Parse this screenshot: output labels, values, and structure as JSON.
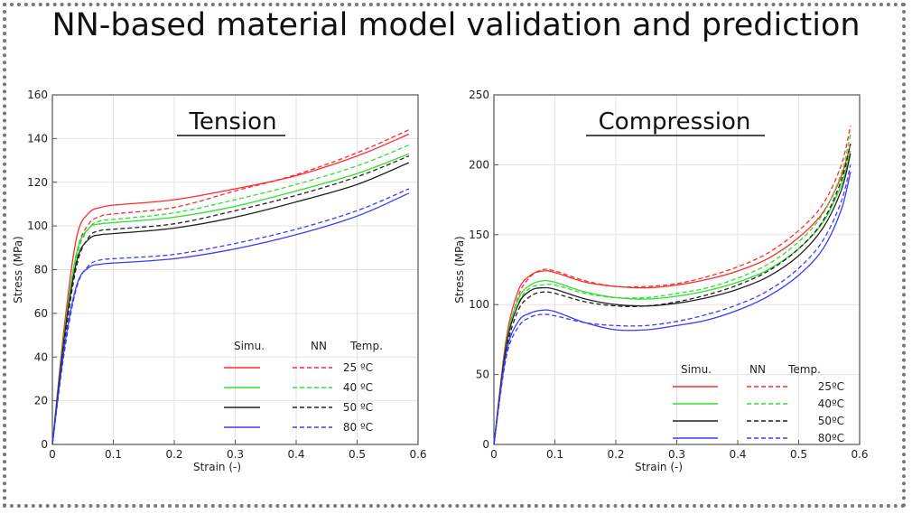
{
  "title": "NN-based material model validation and prediction",
  "colors": {
    "25": "#ff2a2a",
    "40": "#2ee02e",
    "50": "#222222",
    "80": "#3a3aff"
  },
  "chart_data": [
    {
      "type": "line",
      "title": "Tension",
      "xlabel": "Strain (-)",
      "ylabel": "Stress (MPa)",
      "xlim": [
        0,
        0.6
      ],
      "ylim": [
        0,
        160
      ],
      "xticks": [
        "0",
        "0.1",
        "0.2",
        "0.3",
        "0.4",
        "0.5",
        "0.6"
      ],
      "xtick_values": [
        0,
        0.1,
        0.2,
        0.3,
        0.4,
        0.5,
        0.6
      ],
      "yticks": [
        "0",
        "20",
        "40",
        "60",
        "80",
        "100",
        "120",
        "140",
        "160"
      ],
      "ytick_values": [
        0,
        20,
        40,
        60,
        80,
        100,
        120,
        140,
        160
      ],
      "grid": true,
      "legend": {
        "position": "bottom-right",
        "headers": [
          "Simu.",
          "NN",
          "Temp."
        ],
        "labels": [
          "25 ºC",
          "40 ºC",
          "50 ºC",
          "80 ºC"
        ]
      },
      "series": [
        {
          "temp": "25",
          "style": "solid",
          "x": [
            0,
            0.02,
            0.04,
            0.06,
            0.08,
            0.1,
            0.2,
            0.3,
            0.4,
            0.5,
            0.585
          ],
          "y": [
            0,
            55,
            95,
            106,
            108.5,
            109.5,
            112,
            117,
            123,
            132,
            142
          ]
        },
        {
          "temp": "25",
          "style": "dashed",
          "x": [
            0,
            0.02,
            0.04,
            0.06,
            0.08,
            0.1,
            0.2,
            0.3,
            0.4,
            0.5,
            0.585
          ],
          "y": [
            0,
            50,
            88,
            101,
            104.5,
            105.5,
            108.5,
            116,
            123.5,
            133.5,
            144
          ]
        },
        {
          "temp": "40",
          "style": "solid",
          "x": [
            0,
            0.02,
            0.04,
            0.06,
            0.08,
            0.1,
            0.2,
            0.3,
            0.4,
            0.5,
            0.585
          ],
          "y": [
            0,
            52,
            88,
            99,
            101,
            101.5,
            104,
            109,
            116,
            124,
            133
          ]
        },
        {
          "temp": "40",
          "style": "dashed",
          "x": [
            0,
            0.02,
            0.04,
            0.06,
            0.08,
            0.1,
            0.2,
            0.3,
            0.4,
            0.5,
            0.585
          ],
          "y": [
            0,
            50,
            86,
            99,
            102.5,
            103,
            106,
            112,
            119,
            127.5,
            137
          ]
        },
        {
          "temp": "50",
          "style": "solid",
          "x": [
            0,
            0.02,
            0.04,
            0.06,
            0.08,
            0.1,
            0.2,
            0.3,
            0.4,
            0.5,
            0.585
          ],
          "y": [
            0,
            50,
            84,
            94,
            96,
            96.5,
            99,
            104,
            111,
            119,
            129
          ]
        },
        {
          "temp": "50",
          "style": "dashed",
          "x": [
            0,
            0.02,
            0.04,
            0.06,
            0.08,
            0.1,
            0.2,
            0.3,
            0.4,
            0.5,
            0.585
          ],
          "y": [
            0,
            47,
            82,
            95,
            98,
            98.5,
            101,
            107,
            114,
            122.5,
            132
          ]
        },
        {
          "temp": "80",
          "style": "solid",
          "x": [
            0,
            0.02,
            0.04,
            0.06,
            0.08,
            0.1,
            0.2,
            0.3,
            0.4,
            0.5,
            0.585
          ],
          "y": [
            0,
            45,
            73,
            81,
            82.5,
            83,
            85,
            89.5,
            96,
            104.5,
            115
          ]
        },
        {
          "temp": "80",
          "style": "dashed",
          "x": [
            0,
            0.02,
            0.04,
            0.06,
            0.08,
            0.1,
            0.2,
            0.3,
            0.4,
            0.5,
            0.585
          ],
          "y": [
            0,
            43,
            72,
            82,
            84.5,
            85,
            87,
            92,
            98.5,
            107,
            117
          ]
        }
      ]
    },
    {
      "type": "line",
      "title": "Compression",
      "xlabel": "Strain (-)",
      "ylabel": "Stress (MPa)",
      "xlim": [
        0,
        0.6
      ],
      "ylim": [
        0,
        250
      ],
      "xticks": [
        "0",
        "0.1",
        "0.2",
        "0.3",
        "0.4",
        "0.5",
        "0.6"
      ],
      "xtick_values": [
        0,
        0.1,
        0.2,
        0.3,
        0.4,
        0.5,
        0.6
      ],
      "yticks": [
        "0",
        "50",
        "100",
        "150",
        "200",
        "250"
      ],
      "ytick_values": [
        0,
        50,
        100,
        150,
        200,
        250
      ],
      "grid": true,
      "legend": {
        "position": "bottom-right",
        "headers": [
          "Simu.",
          "NN",
          "Temp."
        ],
        "labels": [
          "25ºC",
          "40ºC",
          "50ºC",
          "80ºC"
        ]
      },
      "series": [
        {
          "temp": "25",
          "style": "solid",
          "x": [
            0,
            0.02,
            0.04,
            0.06,
            0.08,
            0.1,
            0.15,
            0.2,
            0.25,
            0.3,
            0.35,
            0.4,
            0.45,
            0.5,
            0.54,
            0.57,
            0.585
          ],
          "y": [
            0,
            75,
            110,
            121,
            124,
            123,
            116,
            113,
            112,
            114,
            118,
            124,
            133,
            148,
            166,
            192,
            215
          ]
        },
        {
          "temp": "25",
          "style": "dashed",
          "x": [
            0,
            0.02,
            0.04,
            0.06,
            0.08,
            0.1,
            0.15,
            0.2,
            0.25,
            0.3,
            0.35,
            0.4,
            0.45,
            0.5,
            0.54,
            0.57,
            0.585
          ],
          "y": [
            0,
            70,
            106,
            120,
            125,
            124,
            117,
            113,
            113,
            115,
            120,
            127,
            137,
            153,
            172,
            200,
            228
          ]
        },
        {
          "temp": "40",
          "style": "solid",
          "x": [
            0,
            0.02,
            0.04,
            0.06,
            0.08,
            0.1,
            0.15,
            0.2,
            0.25,
            0.3,
            0.35,
            0.4,
            0.45,
            0.5,
            0.54,
            0.57,
            0.585
          ],
          "y": [
            0,
            72,
            104,
            114,
            117,
            116,
            109,
            105,
            104,
            106,
            110,
            116,
            125,
            140,
            159,
            186,
            210
          ]
        },
        {
          "temp": "40",
          "style": "dashed",
          "x": [
            0,
            0.02,
            0.04,
            0.06,
            0.08,
            0.1,
            0.15,
            0.2,
            0.25,
            0.3,
            0.35,
            0.4,
            0.45,
            0.5,
            0.54,
            0.57,
            0.585
          ],
          "y": [
            0,
            68,
            101,
            112,
            114,
            114,
            108,
            105,
            105,
            108,
            112,
            119,
            129,
            145,
            165,
            194,
            222
          ]
        },
        {
          "temp": "50",
          "style": "solid",
          "x": [
            0,
            0.02,
            0.04,
            0.06,
            0.08,
            0.1,
            0.15,
            0.2,
            0.25,
            0.3,
            0.35,
            0.4,
            0.45,
            0.5,
            0.54,
            0.57,
            0.585
          ],
          "y": [
            0,
            70,
            100,
            110,
            112,
            111,
            104,
            100,
            99,
            101,
            105,
            111,
            120,
            135,
            155,
            182,
            208
          ]
        },
        {
          "temp": "50",
          "style": "dashed",
          "x": [
            0,
            0.02,
            0.04,
            0.06,
            0.08,
            0.1,
            0.15,
            0.2,
            0.25,
            0.3,
            0.35,
            0.4,
            0.45,
            0.5,
            0.54,
            0.57,
            0.585
          ],
          "y": [
            0,
            66,
            96,
            106,
            109,
            108,
            102,
            99,
            99,
            102,
            107,
            114,
            124,
            140,
            160,
            189,
            215
          ]
        },
        {
          "temp": "80",
          "style": "solid",
          "x": [
            0,
            0.02,
            0.04,
            0.06,
            0.08,
            0.1,
            0.15,
            0.2,
            0.25,
            0.3,
            0.35,
            0.4,
            0.45,
            0.5,
            0.54,
            0.57,
            0.585
          ],
          "y": [
            0,
            65,
            88,
            94,
            96,
            95,
            87,
            82,
            82,
            85,
            89,
            96,
            106,
            121,
            140,
            168,
            195
          ]
        },
        {
          "temp": "80",
          "style": "dashed",
          "x": [
            0,
            0.02,
            0.04,
            0.06,
            0.08,
            0.1,
            0.15,
            0.2,
            0.25,
            0.3,
            0.35,
            0.4,
            0.45,
            0.5,
            0.54,
            0.57,
            0.585
          ],
          "y": [
            0,
            62,
            84,
            91,
            93,
            92,
            87,
            85,
            85,
            88,
            93,
            100,
            110,
            126,
            146,
            174,
            200
          ]
        }
      ]
    }
  ]
}
